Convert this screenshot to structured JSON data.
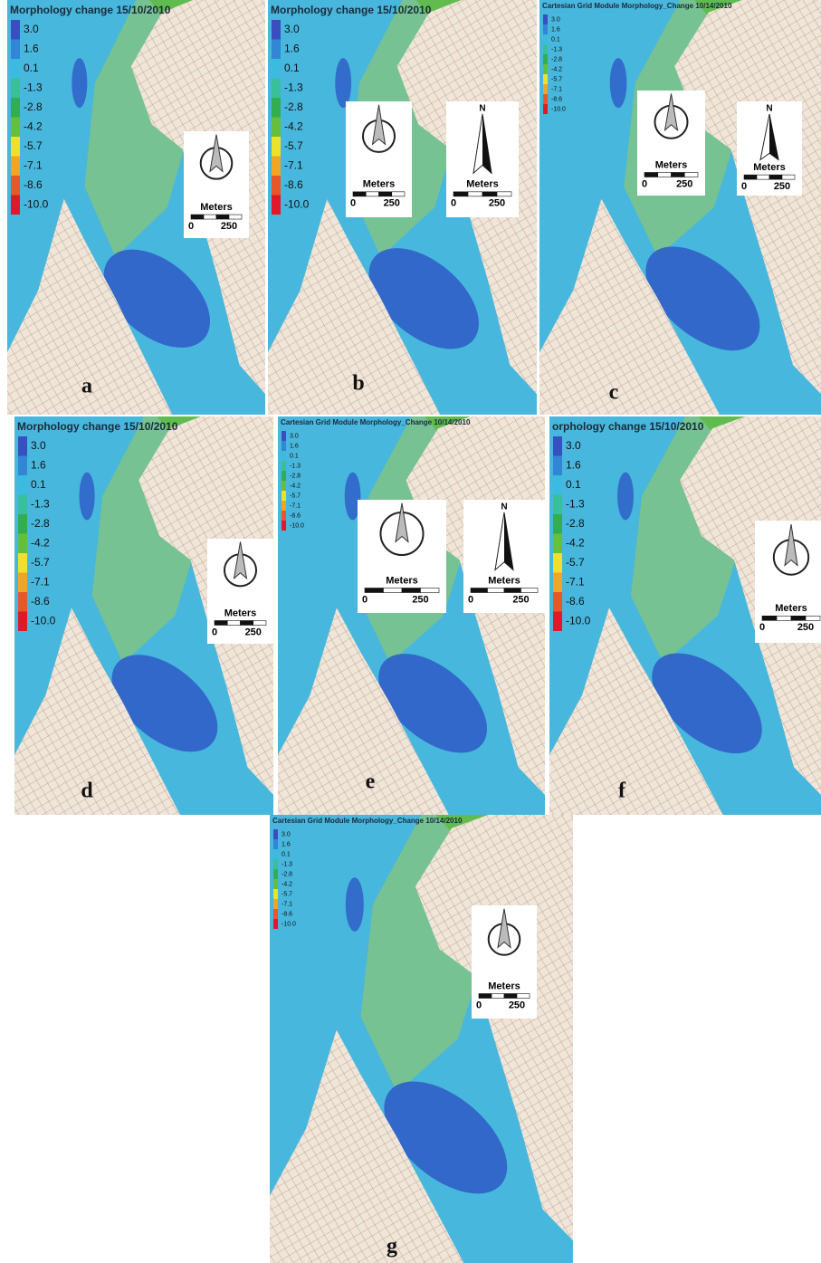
{
  "legend_labels": [
    "3.0",
    "1.6",
    "0.1",
    "-1.3",
    "-2.8",
    "-4.2",
    "-5.7",
    "-7.1",
    "-8.6",
    "-10.0"
  ],
  "panels": [
    {
      "letter": "a",
      "title": "Morphology change 15/10/2010",
      "insets": [
        {
          "meters": "Meters",
          "scale_start": "0",
          "scale_end": "250"
        }
      ]
    },
    {
      "letter": "b",
      "title": "Morphology change 15/10/2010",
      "insets": [
        {
          "meters": "Meters",
          "scale_start": "0",
          "scale_end": "250"
        },
        {
          "north": "N",
          "meters": "Meters",
          "scale_start": "0",
          "scale_end": "250"
        }
      ]
    },
    {
      "letter": "c",
      "title": "Cartesian Grid Module Morphology_Change 10/14/2010",
      "insets": [
        {
          "meters": "Meters",
          "scale_start": "0",
          "scale_end": "250"
        },
        {
          "north": "N",
          "meters": "Meters",
          "scale_start": "0",
          "scale_end": "250"
        }
      ]
    },
    {
      "letter": "d",
      "title": "Morphology change 15/10/2010",
      "insets": [
        {
          "meters": "Meters",
          "scale_start": "0",
          "scale_end": "250"
        }
      ]
    },
    {
      "letter": "e",
      "title": "Cartesian Grid Module Morphology_Change 10/14/2010",
      "insets": [
        {
          "meters": "Meters",
          "scale_start": "0",
          "scale_end": "250"
        },
        {
          "north": "N",
          "meters": "Meters",
          "scale_start": "0",
          "scale_end": "250"
        }
      ]
    },
    {
      "letter": "f",
      "title": "orphology change 15/10/2010",
      "insets": [
        {
          "meters": "Meters",
          "scale_start": "0",
          "scale_end": "250"
        }
      ]
    },
    {
      "letter": "g",
      "title": "Cartesian Grid Module Morphology_Change 10/14/2010",
      "insets": [
        {
          "meters": "Meters",
          "scale_start": "0",
          "scale_end": "250"
        }
      ]
    }
  ]
}
